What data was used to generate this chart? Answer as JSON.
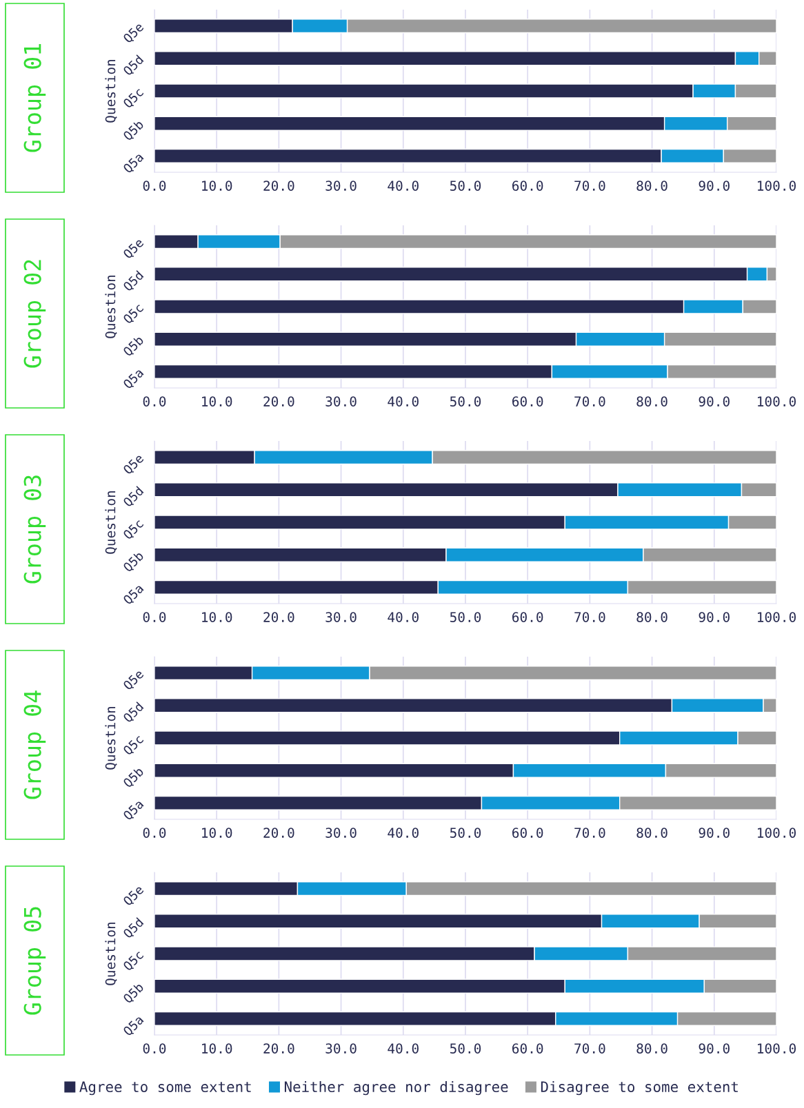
{
  "chart_data": [
    {
      "type": "bar",
      "title": "Group 01",
      "ylabel": "Question",
      "orientation": "horizontal",
      "stacked": true,
      "grid": "x",
      "legend": "bottom",
      "categories": [
        "Q5e",
        "Q5d",
        "Q5c",
        "Q5b",
        "Q5a"
      ],
      "xlim": [
        0,
        100
      ],
      "xticks": [
        {
          "value": 0,
          "label": "0.0"
        },
        {
          "value": 10,
          "label": "10.0"
        },
        {
          "value": 20,
          "label": "20.0"
        },
        {
          "value": 30,
          "label": "30.0"
        },
        {
          "value": 40,
          "label": "40.0"
        },
        {
          "value": 50,
          "label": "50.0"
        },
        {
          "value": 60,
          "label": "60.0"
        },
        {
          "value": 70,
          "label": "70.0"
        },
        {
          "value": 80,
          "label": "80.0"
        },
        {
          "value": 90,
          "label": "90.0"
        },
        {
          "value": 100,
          "label": "100.0"
        }
      ],
      "series": [
        {
          "name": "Agree to some extent",
          "color": "#272a50",
          "values": [
            22.2,
            93.4,
            86.6,
            82.0,
            81.5
          ]
        },
        {
          "name": "Neither agree nor disagree",
          "color": "#1199d6",
          "values": [
            8.8,
            3.8,
            6.8,
            10.1,
            10.0
          ]
        },
        {
          "name": "Disagree to some extent",
          "color": "#9b9b9b",
          "values": [
            69.0,
            2.8,
            6.6,
            7.9,
            8.5
          ]
        }
      ]
    },
    {
      "type": "bar",
      "title": "Group 02",
      "ylabel": "Question",
      "orientation": "horizontal",
      "stacked": true,
      "grid": "x",
      "categories": [
        "Q5e",
        "Q5d",
        "Q5c",
        "Q5b",
        "Q5a"
      ],
      "xlim": [
        0,
        100
      ],
      "xticks": [
        {
          "value": 0,
          "label": "0.0"
        },
        {
          "value": 10,
          "label": "10.0"
        },
        {
          "value": 20,
          "label": "20.0"
        },
        {
          "value": 30,
          "label": "30.0"
        },
        {
          "value": 40,
          "label": "40.0"
        },
        {
          "value": 50,
          "label": "50.0"
        },
        {
          "value": 60,
          "label": "60.0"
        },
        {
          "value": 70,
          "label": "70.0"
        },
        {
          "value": 80,
          "label": "80.0"
        },
        {
          "value": 90,
          "label": "90.0"
        },
        {
          "value": 100,
          "label": "100.0"
        }
      ],
      "series": [
        {
          "color": "#272a50",
          "values": [
            7.0,
            95.3,
            85.1,
            67.8,
            63.9
          ]
        },
        {
          "color": "#1199d6",
          "values": [
            13.2,
            3.2,
            9.5,
            14.2,
            18.6
          ]
        },
        {
          "color": "#9b9b9b",
          "values": [
            79.8,
            1.5,
            5.4,
            18.0,
            17.5
          ]
        }
      ]
    },
    {
      "type": "bar",
      "title": "Group 03",
      "ylabel": "Question",
      "orientation": "horizontal",
      "stacked": true,
      "grid": "x",
      "categories": [
        "Q5e",
        "Q5d",
        "Q5c",
        "Q5b",
        "Q5a"
      ],
      "xlim": [
        0,
        100
      ],
      "xticks": [
        {
          "value": 0,
          "label": "0.0"
        },
        {
          "value": 10,
          "label": "10.0"
        },
        {
          "value": 20,
          "label": "20.0"
        },
        {
          "value": 30,
          "label": "30.0"
        },
        {
          "value": 40,
          "label": "40.0"
        },
        {
          "value": 50,
          "label": "50.0"
        },
        {
          "value": 60,
          "label": "60.0"
        },
        {
          "value": 70,
          "label": "70.0"
        },
        {
          "value": 80,
          "label": "80.0"
        },
        {
          "value": 90,
          "label": "90.0"
        },
        {
          "value": 100,
          "label": "100.0"
        }
      ],
      "series": [
        {
          "color": "#272a50",
          "values": [
            16.1,
            74.5,
            66.0,
            46.9,
            45.6
          ]
        },
        {
          "color": "#1199d6",
          "values": [
            28.6,
            19.9,
            26.3,
            31.7,
            30.5
          ]
        },
        {
          "color": "#9b9b9b",
          "values": [
            55.3,
            5.6,
            7.7,
            21.4,
            23.9
          ]
        }
      ]
    },
    {
      "type": "bar",
      "title": "Group 04",
      "ylabel": "Question",
      "orientation": "horizontal",
      "stacked": true,
      "grid": "x",
      "categories": [
        "Q5e",
        "Q5d",
        "Q5c",
        "Q5b",
        "Q5a"
      ],
      "xlim": [
        0,
        100
      ],
      "xticks": [
        {
          "value": 0,
          "label": "0.0"
        },
        {
          "value": 10,
          "label": "10.0"
        },
        {
          "value": 20,
          "label": "20.0"
        },
        {
          "value": 30,
          "label": "30.0"
        },
        {
          "value": 40,
          "label": "40.0"
        },
        {
          "value": 50,
          "label": "50.0"
        },
        {
          "value": 60,
          "label": "60.0"
        },
        {
          "value": 70,
          "label": "70.0"
        },
        {
          "value": 80,
          "label": "80.0"
        },
        {
          "value": 90,
          "label": "90.0"
        },
        {
          "value": 100,
          "label": "100.0"
        }
      ],
      "series": [
        {
          "color": "#272a50",
          "values": [
            15.7,
            83.2,
            74.8,
            57.7,
            52.6
          ]
        },
        {
          "color": "#1199d6",
          "values": [
            18.9,
            14.7,
            19.0,
            24.5,
            22.2
          ]
        },
        {
          "color": "#9b9b9b",
          "values": [
            65.4,
            2.1,
            6.2,
            17.8,
            25.2
          ]
        }
      ]
    },
    {
      "type": "bar",
      "title": "Group 05",
      "ylabel": "Question",
      "orientation": "horizontal",
      "stacked": true,
      "grid": "x",
      "categories": [
        "Q5e",
        "Q5d",
        "Q5c",
        "Q5b",
        "Q5a"
      ],
      "xlim": [
        0,
        100
      ],
      "xticks": [
        {
          "value": 0,
          "label": "0.0"
        },
        {
          "value": 10,
          "label": "10.0"
        },
        {
          "value": 20,
          "label": "20.0"
        },
        {
          "value": 30,
          "label": "30.0"
        },
        {
          "value": 40,
          "label": "40.0"
        },
        {
          "value": 50,
          "label": "50.0"
        },
        {
          "value": 60,
          "label": "60.0"
        },
        {
          "value": 70,
          "label": "70.0"
        },
        {
          "value": 80,
          "label": "80.0"
        },
        {
          "value": 90,
          "label": "90.0"
        },
        {
          "value": 100,
          "label": "100.0"
        }
      ],
      "series": [
        {
          "color": "#272a50",
          "values": [
            23.0,
            71.9,
            61.1,
            66.0,
            64.5
          ]
        },
        {
          "color": "#1199d6",
          "values": [
            17.5,
            15.7,
            15.0,
            22.4,
            19.6
          ]
        },
        {
          "color": "#9b9b9b",
          "values": [
            59.5,
            12.4,
            23.9,
            11.6,
            15.9
          ]
        }
      ]
    }
  ]
}
